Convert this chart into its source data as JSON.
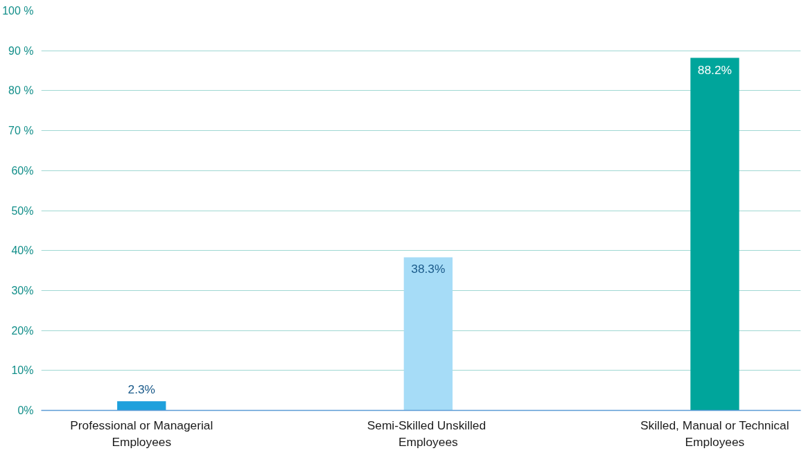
{
  "chart_data": {
    "type": "bar",
    "categories": [
      "Professional or Managerial\nEmployees",
      "Semi-Skilled  Unskilled\nEmployees",
      "Skilled, Manual or Technical\nEmployees"
    ],
    "values": [
      2.3,
      38.3,
      88.2
    ],
    "colors": [
      "#1ea0dc",
      "#a6dcf7",
      "#00a59b"
    ],
    "ylim": [
      0,
      100
    ],
    "yticks": [
      {
        "value": 0,
        "label": "0%"
      },
      {
        "value": 10,
        "label": "10%"
      },
      {
        "value": 20,
        "label": "20%"
      },
      {
        "value": 30,
        "label": "30%"
      },
      {
        "value": 40,
        "label": "40%"
      },
      {
        "value": 50,
        "label": "50%"
      },
      {
        "value": 60,
        "label": "60%"
      },
      {
        "value": 70,
        "label": "70 %"
      },
      {
        "value": 80,
        "label": "80 %"
      },
      {
        "value": 90,
        "label": "90 %"
      },
      {
        "value": 100,
        "label": "100 %"
      }
    ],
    "grid": "y",
    "value_labels": [
      "2.3%",
      "38.3%",
      "88.2%"
    ]
  }
}
